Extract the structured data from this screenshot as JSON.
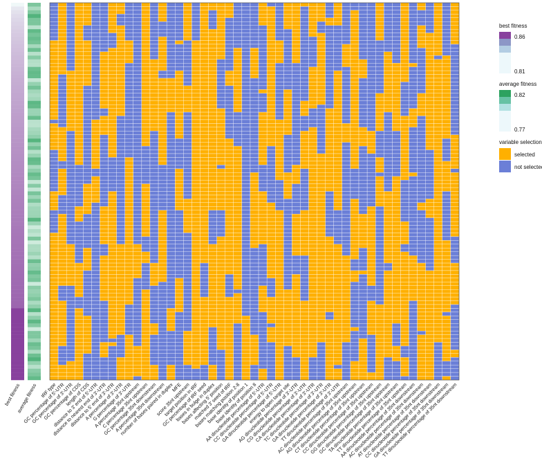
{
  "chart_data": {
    "type": "heatmap",
    "title": "",
    "annotation_tracks": [
      {
        "name": "best fitness",
        "colors": [
          "#f0f8f8",
          "#88419d"
        ],
        "range": [
          0.81,
          0.86
        ]
      },
      {
        "name": "average fitness",
        "colors": [
          "#edf8f4",
          "#2ca25f"
        ],
        "range": [
          0.77,
          0.82
        ]
      }
    ],
    "rows": 100,
    "columns": [
      "tRF type",
      "GC percentage of 5'-UTR",
      "GC percentage of 3'-UTR",
      "GC percentage of CDS",
      "length of CDS",
      "distance to 3' end of 5'-UTR",
      "distance to nearest end of 3'-UTR",
      "distance to 5' end of 3'-UTR",
      "A percentage of 3'-UTR",
      "G percentage of 3'-UTR",
      "A percentage 35nt upstream",
      "C percentage 35nt upstream",
      "GC percentage 35nt downstream",
      "A percentage 35nt downstream",
      "number of bases paired in duplex",
      "MFE",
      "score 35nt upstream",
      "target position in tRF",
      "GC percentage of tRF seed",
      "bases in bulge in duplex",
      "bases affecting 5' position",
      "matched 3' seed of tRF",
      "bases matching position 2-8",
      "base identity of position 1",
      "base identity of position 8",
      "AA dinucleotide percentage of 5'-UTR",
      "CC dinucleotide percentage of 5'-UTR",
      "GA dinucleotide percentage of 5'-UTR",
      "energy to open target site",
      "AG dinucleotide percentage of 3'-UTR",
      "CG dinucleotide percentage of 3'-UTR",
      "CA dinucleotide percentage of 3'-UTR",
      "TC dinucleotide percentage of 3'-UTR",
      "GA dinucleotide percentage of 3'-UTR",
      "TT dinucleotide percentage of 3'-UTR",
      "AC dinucleotide percentage of 35nt upstream",
      "AG dinucleotide percentage of 35nt upstream",
      "CT dinucleotide percentage of 35nt upstream",
      "CC dinucleotide percentage of 35nt upstream",
      "GG dinucleotide percentage of 35nt upstream",
      "GC dinucleotide percentage of 35nt upstream",
      "TA dinucleotide percentage of 35nt upstream",
      "TT dinucleotide percentage of 35nt upstream",
      "AA dinucleotide percentage of 35nt downstream",
      "AC dinucleotide percentage of 35nt downstream",
      "AT dinucleotide percentage of 35nt downstream",
      "CC dinucleotide percentage of 35nt downstream",
      "GA dinucleotide percentage of 35nt downstream",
      "TT dinucleotide percentage of 35nt downstream"
    ],
    "legend": [
      {
        "title": "best fitness",
        "high": "0.86",
        "low": "0.81",
        "colors": [
          "#88419d",
          "#8c96c6",
          "#b3cde3",
          "#edf8fb"
        ]
      },
      {
        "title": "average fitness",
        "high": "0.82",
        "low": "0.77",
        "colors": [
          "#2ca25f",
          "#66c2a4",
          "#b2e2e2",
          "#edf8fb"
        ]
      },
      {
        "title": "variable selection",
        "items": [
          {
            "label": "selected",
            "color": "#ffb000"
          },
          {
            "label": "not selected",
            "color": "#6b7fd7"
          }
        ]
      }
    ],
    "legend_position": "right",
    "grid": true
  }
}
